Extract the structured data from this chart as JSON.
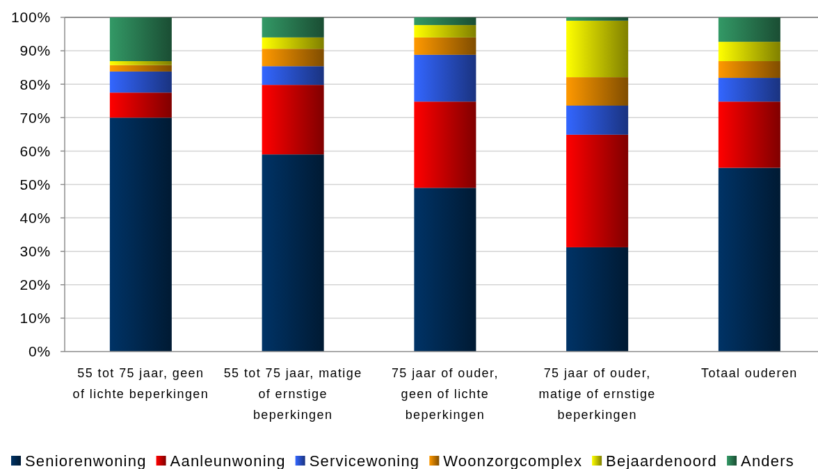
{
  "chart_data": {
    "type": "bar",
    "stacked": true,
    "categories": [
      "55 tot 75 jaar, geen of lichte beperkingen",
      "55 tot 75 jaar, matige of ernstige beperkingen",
      "75 jaar of ouder, geen of lichte beperkingen",
      "75 jaar of ouder, matige of ernstige beperkingen",
      "Totaal ouderen"
    ],
    "series": [
      {
        "name": "Seniorenwoning",
        "color": "#003366",
        "values": [
          70,
          59,
          49,
          31.2,
          55
        ]
      },
      {
        "name": "Aanleunwoning",
        "color": "#ff0000",
        "values": [
          7.5,
          20.8,
          25.8,
          33.7,
          19.8
        ]
      },
      {
        "name": "Servicewoning",
        "color": "#3366ff",
        "values": [
          6.3,
          5.6,
          14,
          8.7,
          7.1
        ]
      },
      {
        "name": "Woonzorgcomplex",
        "color": "#ff9900",
        "values": [
          1.9,
          5.2,
          5.2,
          8.5,
          5
        ]
      },
      {
        "name": "Bejaardenoord",
        "color": "#ffff00",
        "values": [
          1.2,
          3.4,
          3.7,
          16.9,
          5.8
        ]
      },
      {
        "name": "Anders",
        "color": "#339966",
        "values": [
          13.1,
          6,
          2.3,
          1,
          7.3
        ]
      }
    ],
    "ylim": [
      0,
      100
    ],
    "yticks": [
      {
        "value": 0,
        "label": "0%"
      },
      {
        "value": 10,
        "label": "10%"
      },
      {
        "value": 20,
        "label": "20%"
      },
      {
        "value": 30,
        "label": "30%"
      },
      {
        "value": 40,
        "label": "40%"
      },
      {
        "value": 50,
        "label": "50%"
      },
      {
        "value": 60,
        "label": "60%"
      },
      {
        "value": 70,
        "label": "70%"
      },
      {
        "value": 80,
        "label": "80%"
      },
      {
        "value": 90,
        "label": "90%"
      },
      {
        "value": 100,
        "label": "100%"
      }
    ],
    "grid": "y",
    "legend": "bottom"
  }
}
